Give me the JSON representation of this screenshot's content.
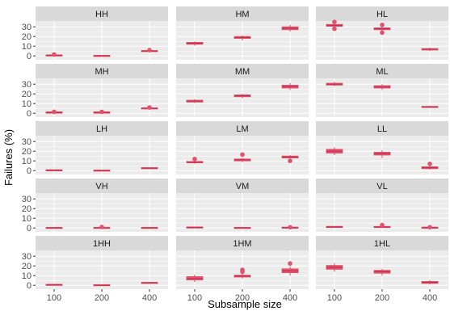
{
  "chart_data": {
    "type": "boxplot",
    "title": "",
    "xlabel": "Subsample size",
    "ylabel": "Failures (%)",
    "categories": [
      "100",
      "200",
      "400"
    ],
    "yticks": [
      0,
      10,
      20,
      30
    ],
    "ylim": [
      -4,
      36
    ],
    "grid": true,
    "legend": "none",
    "colors": {
      "box": "#E2526D",
      "median": "#C0334F",
      "panel_bg": "#EBEBEB",
      "strip_bg": "#D9D9D9",
      "grid": "#FFFFFF"
    },
    "panels": [
      {
        "label": "HH",
        "boxes": [
          {
            "x": "100",
            "min": -0.5,
            "q1": 0,
            "median": 0.5,
            "q3": 1,
            "max": 1.5,
            "outliers": [
              1.5
            ]
          },
          {
            "x": "200",
            "min": -0.5,
            "q1": -0.3,
            "median": 0,
            "q3": 0.3,
            "max": 0.5,
            "outliers": []
          },
          {
            "x": "400",
            "min": 3.5,
            "q1": 4.5,
            "median": 5,
            "q3": 5.5,
            "max": 6,
            "outliers": [
              6
            ]
          }
        ]
      },
      {
        "label": "HM",
        "boxes": [
          {
            "x": "100",
            "min": 10.5,
            "q1": 12,
            "median": 13,
            "q3": 14,
            "max": 15,
            "outliers": []
          },
          {
            "x": "200",
            "min": 16,
            "q1": 18,
            "median": 19,
            "q3": 20,
            "max": 21,
            "outliers": []
          },
          {
            "x": "400",
            "min": 25,
            "q1": 27,
            "median": 28.5,
            "q3": 30,
            "max": 32,
            "outliers": []
          }
        ]
      },
      {
        "label": "HL",
        "boxes": [
          {
            "x": "100",
            "min": 29,
            "q1": 30.5,
            "median": 31.5,
            "q3": 32.5,
            "max": 34,
            "outliers": [
              35,
              28
            ]
          },
          {
            "x": "200",
            "min": 26,
            "q1": 27,
            "median": 28,
            "q3": 29,
            "max": 31,
            "outliers": [
              32,
              24
            ]
          },
          {
            "x": "400",
            "min": 5,
            "q1": 6,
            "median": 7,
            "q3": 7.5,
            "max": 8.5,
            "outliers": []
          }
        ]
      },
      {
        "label": "MH",
        "boxes": [
          {
            "x": "100",
            "min": -0.5,
            "q1": 0,
            "median": 0.8,
            "q3": 1.5,
            "max": 2,
            "outliers": [
              1.5
            ]
          },
          {
            "x": "200",
            "min": -0.5,
            "q1": 0,
            "median": 0.8,
            "q3": 1.5,
            "max": 2,
            "outliers": [
              1.5
            ]
          },
          {
            "x": "400",
            "min": 3.5,
            "q1": 4.5,
            "median": 5,
            "q3": 5.5,
            "max": 6,
            "outliers": [
              6
            ]
          }
        ]
      },
      {
        "label": "MM",
        "boxes": [
          {
            "x": "100",
            "min": 10.5,
            "q1": 11.5,
            "median": 12.5,
            "q3": 13.5,
            "max": 14.5,
            "outliers": []
          },
          {
            "x": "200",
            "min": 15.5,
            "q1": 17,
            "median": 18,
            "q3": 19,
            "max": 20,
            "outliers": []
          },
          {
            "x": "400",
            "min": 24,
            "q1": 26,
            "median": 27.5,
            "q3": 29,
            "max": 31,
            "outliers": []
          }
        ]
      },
      {
        "label": "ML",
        "boxes": [
          {
            "x": "100",
            "min": 28,
            "q1": 29,
            "median": 30,
            "q3": 31,
            "max": 32.5,
            "outliers": []
          },
          {
            "x": "200",
            "min": 24,
            "q1": 26,
            "median": 27,
            "q3": 28.5,
            "max": 30,
            "outliers": []
          },
          {
            "x": "400",
            "min": 5.5,
            "q1": 6,
            "median": 6.5,
            "q3": 7,
            "max": 7.5,
            "outliers": []
          }
        ]
      },
      {
        "label": "LH",
        "boxes": [
          {
            "x": "100",
            "min": -0.3,
            "q1": 0,
            "median": 0.3,
            "q3": 0.6,
            "max": 0.8,
            "outliers": []
          },
          {
            "x": "200",
            "min": -0.3,
            "q1": -0.2,
            "median": 0,
            "q3": 0.2,
            "max": 0.4,
            "outliers": []
          },
          {
            "x": "400",
            "min": 1.5,
            "q1": 2,
            "median": 2.5,
            "q3": 3,
            "max": 3.5,
            "outliers": []
          }
        ]
      },
      {
        "label": "LM",
        "boxes": [
          {
            "x": "100",
            "min": 7,
            "q1": 8,
            "median": 8.5,
            "q3": 9.5,
            "max": 10.5,
            "outliers": [
              12
            ]
          },
          {
            "x": "200",
            "min": 9,
            "q1": 10,
            "median": 11,
            "q3": 12,
            "max": 13,
            "outliers": [
              16.5
            ]
          },
          {
            "x": "400",
            "min": 11.5,
            "q1": 13,
            "median": 14,
            "q3": 15,
            "max": 16,
            "outliers": [
              10
            ]
          }
        ]
      },
      {
        "label": "LL",
        "boxes": [
          {
            "x": "100",
            "min": 16,
            "q1": 18,
            "median": 20,
            "q3": 22,
            "max": 24,
            "outliers": []
          },
          {
            "x": "200",
            "min": 13,
            "q1": 16,
            "median": 17.5,
            "q3": 19,
            "max": 21,
            "outliers": []
          },
          {
            "x": "400",
            "min": 1,
            "q1": 2,
            "median": 3,
            "q3": 4,
            "max": 5,
            "outliers": [
              7
            ]
          }
        ]
      },
      {
        "label": "VH",
        "boxes": [
          {
            "x": "100",
            "min": -0.3,
            "q1": -0.1,
            "median": 0,
            "q3": 0.2,
            "max": 0.4,
            "outliers": []
          },
          {
            "x": "200",
            "min": -0.3,
            "q1": -0.1,
            "median": 0,
            "q3": 0.3,
            "max": 0.6,
            "outliers": [
              1
            ]
          },
          {
            "x": "400",
            "min": -0.3,
            "q1": -0.1,
            "median": 0,
            "q3": 0.2,
            "max": 0.4,
            "outliers": []
          }
        ]
      },
      {
        "label": "VM",
        "boxes": [
          {
            "x": "100",
            "min": 0,
            "q1": 0.2,
            "median": 0.5,
            "q3": 0.8,
            "max": 1,
            "outliers": []
          },
          {
            "x": "200",
            "min": -0.3,
            "q1": -0.1,
            "median": 0,
            "q3": 0.2,
            "max": 0.4,
            "outliers": []
          },
          {
            "x": "400",
            "min": -0.3,
            "q1": 0,
            "median": 0.3,
            "q3": 0.6,
            "max": 0.8,
            "outliers": [
              0.8
            ]
          }
        ]
      },
      {
        "label": "VL",
        "boxes": [
          {
            "x": "100",
            "min": 0.5,
            "q1": 0.8,
            "median": 1,
            "q3": 1.3,
            "max": 1.6,
            "outliers": []
          },
          {
            "x": "200",
            "min": 0,
            "q1": 0.5,
            "median": 1,
            "q3": 1.5,
            "max": 2,
            "outliers": [
              3
            ]
          },
          {
            "x": "400",
            "min": -0.3,
            "q1": 0,
            "median": 0.3,
            "q3": 0.6,
            "max": 0.8,
            "outliers": [
              0.8
            ]
          }
        ]
      },
      {
        "label": "1HH",
        "boxes": [
          {
            "x": "100",
            "min": -0.3,
            "q1": 0,
            "median": 0.5,
            "q3": 1,
            "max": 1.3,
            "outliers": []
          },
          {
            "x": "200",
            "min": -0.3,
            "q1": -0.1,
            "median": 0,
            "q3": 0.3,
            "max": 0.6,
            "outliers": []
          },
          {
            "x": "400",
            "min": 1.5,
            "q1": 2,
            "median": 2.5,
            "q3": 3,
            "max": 3.5,
            "outliers": []
          }
        ]
      },
      {
        "label": "1HM",
        "boxes": [
          {
            "x": "100",
            "min": 3.5,
            "q1": 5.5,
            "median": 7,
            "q3": 9,
            "max": 11,
            "outliers": []
          },
          {
            "x": "200",
            "min": 7,
            "q1": 8.5,
            "median": 9.5,
            "q3": 10.5,
            "max": 12,
            "outliers": [
              14,
              16
            ]
          },
          {
            "x": "400",
            "min": 10,
            "q1": 13,
            "median": 15,
            "q3": 17,
            "max": 19.5,
            "outliers": [
              22.5
            ]
          }
        ]
      },
      {
        "label": "1HL",
        "boxes": [
          {
            "x": "100",
            "min": 14,
            "q1": 16.5,
            "median": 18.5,
            "q3": 20.5,
            "max": 23,
            "outliers": []
          },
          {
            "x": "200",
            "min": 10,
            "q1": 12.5,
            "median": 14,
            "q3": 15.5,
            "max": 17,
            "outliers": []
          },
          {
            "x": "400",
            "min": 1,
            "q1": 2,
            "median": 3,
            "q3": 4,
            "max": 5.5,
            "outliers": []
          }
        ]
      }
    ]
  }
}
